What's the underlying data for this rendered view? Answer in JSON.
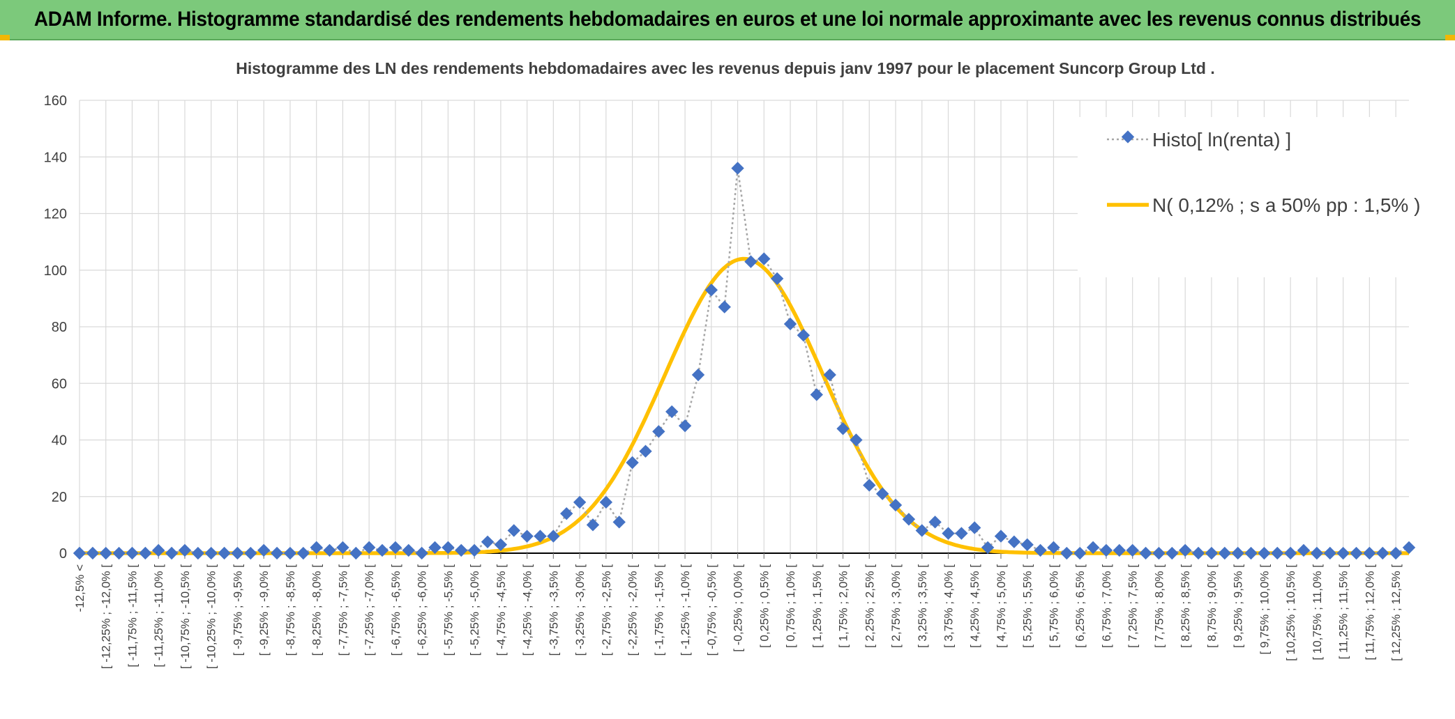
{
  "banner": {
    "title": "ADAM Informe. Histogramme standardisé des rendements hebdomadaires en euros et une loi normale approximante avec les revenus connus distribués"
  },
  "colors": {
    "banner_bg": "#7cc97b",
    "accent_corner": "#f2b705",
    "histogram_marker": "#4472c4",
    "histogram_line": "#a6a6a6",
    "normal_curve": "#ffc000"
  },
  "chart_data": {
    "type": "line",
    "title": "Histogramme des LN des rendements hebdomadaires avec les revenus depuis janv 1997 pour le placement Suncorp Group Ltd .",
    "xlabel": "",
    "ylabel": "",
    "ylim": [
      0,
      160
    ],
    "yticks": [
      0,
      20,
      40,
      60,
      80,
      100,
      120,
      140,
      160
    ],
    "grid": true,
    "legend_position": "top-right",
    "categories": [
      "-12,5% <",
      "[ -12,25% ; -12,0% [",
      "[ -11,75% ; -11,5% [",
      "[ -11,25% ; -11,0% [",
      "[ -10,75% ; -10,5% [",
      "[ -10,25% ; -10,0% [",
      "[ -9,75% ; -9,5% [",
      "[ -9,25% ; -9,0% [",
      "[ -8,75% ; -8,5% [",
      "[ -8,25% ; -8,0% [",
      "[ -7,75% ; -7,5% [",
      "[ -7,25% ; -7,0% [",
      "[ -6,75% ; -6,5% [",
      "[ -6,25% ; -6,0% [",
      "[ -5,75% ; -5,5% [",
      "[ -5,25% ; -5,0% [",
      "[ -4,75% ; -4,5% [",
      "[ -4,25% ; -4,0% [",
      "[ -3,75% ; -3,5% [",
      "[ -3,25% ; -3,0% [",
      "[ -2,75% ; -2,5% [",
      "[ -2,25% ; -2,0% [",
      "[ -1,75% ; -1,5% [",
      "[ -1,25% ; -1,0% [",
      "[ -0,75% ; -0,5% [",
      "[ -0,25% ; 0,0% [",
      "[ 0,25% ; 0,5% [",
      "[ 0,75% ; 1,0% [",
      "[ 1,25% ; 1,5% [",
      "[ 1,75% ; 2,0% [",
      "[ 2,25% ; 2,5% [",
      "[ 2,75% ; 3,0% [",
      "[ 3,25% ; 3,5% [",
      "[ 3,75% ; 4,0% [",
      "[ 4,25% ; 4,5% [",
      "[ 4,75% ; 5,0% [",
      "[ 5,25% ; 5,5% [",
      "[ 5,75% ; 6,0% [",
      "[ 6,25% ; 6,5% [",
      "[ 6,75% ; 7,0% [",
      "[ 7,25% ; 7,5% [",
      "[ 7,75% ; 8,0% [",
      "[ 8,25% ; 8,5% [",
      "[ 8,75% ; 9,0% [",
      "[ 9,25% ; 9,5% [",
      "[ 9,75% ; 10,0% [",
      "[ 10,25% ; 10,5% [",
      "[ 10,75% ; 11,0% [",
      "[ 11,25% ; 11,5% [",
      "[ 11,75% ; 12,0% [",
      "[ 12,25% ; 12,5% ["
    ],
    "series": [
      {
        "name": "Histo[ ln(renta) ]",
        "style": "dotted-line-diamond-markers",
        "x": [
          -12.5,
          -12.25,
          -12,
          -11.75,
          -11.5,
          -11.25,
          -11,
          -10.75,
          -10.5,
          -10.25,
          -10,
          -9.75,
          -9.5,
          -9.25,
          -9,
          -8.75,
          -8.5,
          -8.25,
          -8,
          -7.75,
          -7.5,
          -7.25,
          -7,
          -6.75,
          -6.5,
          -6.25,
          -6,
          -5.75,
          -5.5,
          -5.25,
          -5,
          -4.75,
          -4.5,
          -4.25,
          -4,
          -3.75,
          -3.5,
          -3.25,
          -3,
          -2.75,
          -2.5,
          -2.25,
          -2,
          -1.75,
          -1.5,
          -1.25,
          -1,
          -0.75,
          -0.5,
          -0.25,
          0,
          0.25,
          0.5,
          0.75,
          1,
          1.25,
          1.5,
          1.75,
          2,
          2.25,
          2.5,
          2.75,
          3,
          3.25,
          3.5,
          3.75,
          4,
          4.25,
          4.5,
          4.75,
          5,
          5.25,
          5.5,
          5.75,
          6,
          6.25,
          6.5,
          6.75,
          7,
          7.25,
          7.5,
          7.75,
          8,
          8.25,
          8.5,
          8.75,
          9,
          9.25,
          9.5,
          9.75,
          10,
          10.25,
          10.5,
          10.75,
          11,
          11.25,
          11.5,
          11.75,
          12,
          12.25,
          12.5,
          12.75
        ],
        "values": [
          0,
          0,
          0,
          0,
          0,
          0,
          1,
          0,
          1,
          0,
          0,
          0,
          0,
          0,
          1,
          0,
          0,
          0,
          2,
          1,
          2,
          0,
          2,
          1,
          2,
          1,
          0,
          2,
          2,
          1,
          1,
          4,
          3,
          8,
          6,
          6,
          6,
          14,
          18,
          10,
          18,
          11,
          32,
          36,
          43,
          50,
          45,
          63,
          93,
          87,
          136,
          103,
          104,
          97,
          81,
          77,
          56,
          63,
          44,
          40,
          24,
          21,
          17,
          12,
          8,
          11,
          7,
          7,
          9,
          2,
          6,
          4,
          3,
          1,
          2,
          0,
          0,
          2,
          1,
          1,
          1,
          0,
          0,
          0,
          1,
          0,
          0,
          0,
          0,
          0,
          0,
          0,
          0,
          1,
          0,
          0,
          0,
          0,
          0,
          0,
          0,
          2
        ]
      },
      {
        "name": "N( 0,12% ; s a 50% pp : 1,5% )",
        "style": "solid-smooth-line",
        "mean": 0.12,
        "sd": 1.5,
        "peak": 104
      }
    ]
  }
}
